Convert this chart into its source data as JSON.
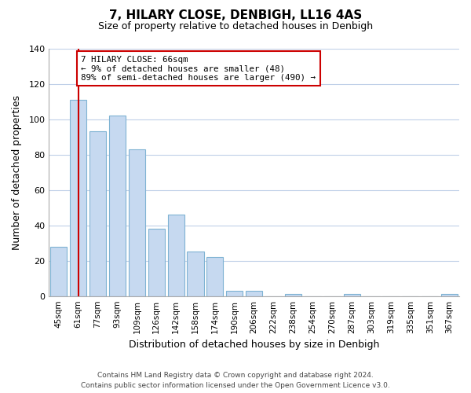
{
  "title": "7, HILARY CLOSE, DENBIGH, LL16 4AS",
  "subtitle": "Size of property relative to detached houses in Denbigh",
  "xlabel": "Distribution of detached houses by size in Denbigh",
  "ylabel": "Number of detached properties",
  "bar_labels": [
    "45sqm",
    "61sqm",
    "77sqm",
    "93sqm",
    "109sqm",
    "126sqm",
    "142sqm",
    "158sqm",
    "174sqm",
    "190sqm",
    "206sqm",
    "222sqm",
    "238sqm",
    "254sqm",
    "270sqm",
    "287sqm",
    "303sqm",
    "319sqm",
    "335sqm",
    "351sqm",
    "367sqm"
  ],
  "bar_values": [
    28,
    111,
    93,
    102,
    83,
    38,
    46,
    25,
    22,
    3,
    3,
    0,
    1,
    0,
    0,
    1,
    0,
    0,
    0,
    0,
    1
  ],
  "bar_color": "#c6d9f0",
  "bar_edge_color": "#7fb3d3",
  "redline_x": 1,
  "ylim": [
    0,
    140
  ],
  "yticks": [
    0,
    20,
    40,
    60,
    80,
    100,
    120,
    140
  ],
  "annotation_title": "7 HILARY CLOSE: 66sqm",
  "annotation_line1": "← 9% of detached houses are smaller (48)",
  "annotation_line2": "89% of semi-detached houses are larger (490) →",
  "annotation_box_color": "#ffffff",
  "annotation_box_edgecolor": "#cc0000",
  "footer_line1": "Contains HM Land Registry data © Crown copyright and database right 2024.",
  "footer_line2": "Contains public sector information licensed under the Open Government Licence v3.0.",
  "background_color": "#ffffff",
  "grid_color": "#c0d0e8"
}
